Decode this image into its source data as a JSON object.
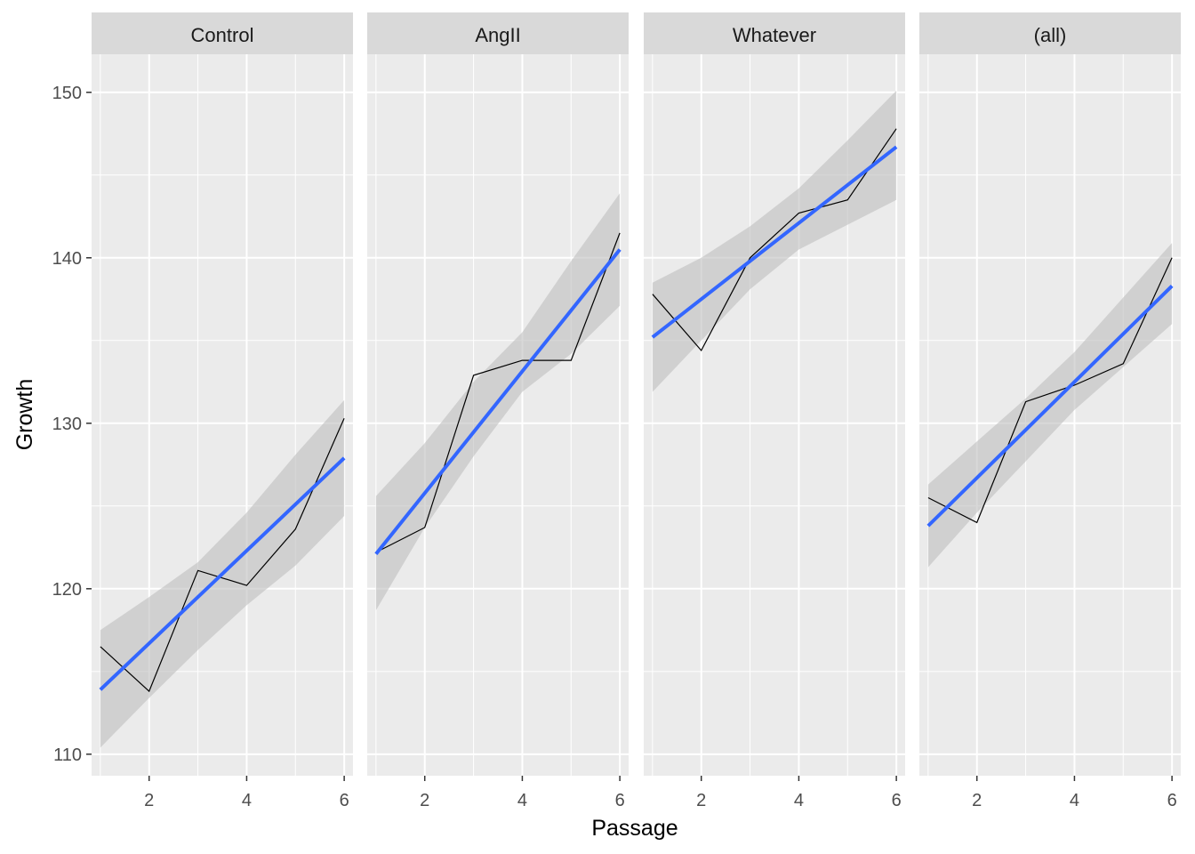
{
  "chart_data": {
    "type": "line",
    "xlabel": "Passage",
    "ylabel": "Growth",
    "xlim": [
      0.82,
      6.18
    ],
    "ylim": [
      108.7,
      152.3
    ],
    "x_ticks": [
      2,
      4,
      6
    ],
    "y_ticks": [
      110,
      120,
      130,
      140,
      150
    ],
    "grid": true,
    "smooth_method": "linear fit with confidence band",
    "colors": {
      "panel_background": "#EBEBEB",
      "strip_background": "#D9D9D9",
      "grid": "#FFFFFF",
      "data_line": "#000000",
      "fit_line": "#3366FF",
      "confidence_band": "#BEBEBE"
    },
    "panels": [
      {
        "title": "Control",
        "x": [
          1,
          2,
          3,
          4,
          5,
          6
        ],
        "y": [
          116.5,
          113.8,
          121.1,
          120.2,
          123.6,
          130.3
        ],
        "fit": [
          113.9,
          127.9
        ],
        "band_lower": [
          110.4,
          113.4,
          116.3,
          119.0,
          121.4,
          124.4
        ],
        "band_upper": [
          117.5,
          119.5,
          121.6,
          124.6,
          128.1,
          131.4
        ]
      },
      {
        "title": "AngII",
        "x": [
          1,
          2,
          3,
          4,
          5,
          6
        ],
        "y": [
          122.2,
          123.7,
          132.9,
          133.8,
          133.8,
          141.5
        ],
        "fit": [
          122.1,
          140.5
        ],
        "band_lower": [
          118.7,
          123.7,
          128.0,
          131.9,
          134.2,
          137.1
        ],
        "band_upper": [
          125.6,
          128.8,
          132.5,
          135.5,
          139.8,
          143.9
        ]
      },
      {
        "title": "Whatever",
        "x": [
          1,
          2,
          3,
          4,
          5,
          6
        ],
        "y": [
          137.8,
          134.4,
          140.0,
          142.7,
          143.5,
          147.8
        ],
        "fit": [
          135.2,
          146.7
        ],
        "band_lower": [
          131.9,
          135.0,
          138.1,
          140.5,
          142.0,
          143.5
        ],
        "band_upper": [
          138.5,
          140.0,
          141.9,
          144.2,
          147.1,
          150.1
        ]
      },
      {
        "title": "(all)",
        "x": [
          1,
          2,
          3,
          4,
          5,
          6
        ],
        "y": [
          125.5,
          124.0,
          131.3,
          132.3,
          133.6,
          140.0
        ],
        "fit": [
          123.8,
          138.3
        ],
        "band_lower": [
          121.3,
          124.6,
          127.7,
          130.8,
          133.4,
          136.0
        ],
        "band_upper": [
          126.3,
          128.9,
          131.5,
          134.3,
          137.6,
          140.9
        ]
      }
    ]
  }
}
